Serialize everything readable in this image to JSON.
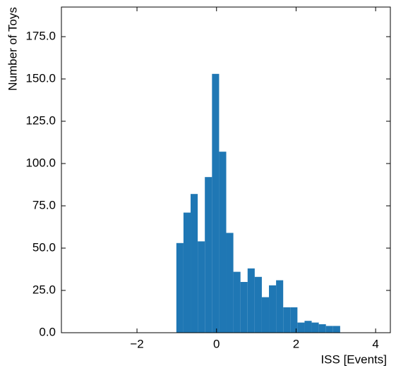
{
  "chart_data": {
    "type": "histogram",
    "xlabel": "ISS [Events]",
    "ylabel": "Number of Toys",
    "bins": [
      -1.01,
      -0.831,
      -0.652,
      -0.473,
      -0.294,
      -0.114,
      0.065,
      0.244,
      0.423,
      0.602,
      0.781,
      0.96,
      1.139,
      1.318,
      1.497,
      1.676,
      1.855,
      2.034,
      2.213,
      2.392,
      2.571,
      2.75,
      2.929,
      3.108
    ],
    "values": [
      53,
      71,
      82,
      54,
      92,
      153,
      107,
      59,
      36,
      30,
      38,
      33,
      21,
      28,
      31,
      15,
      15,
      6,
      7,
      6,
      5,
      4,
      4
    ],
    "color": "#1f77b4",
    "xlim": [
      -3.9,
      4.37
    ],
    "ylim": [
      0,
      192.5
    ],
    "xticks": [
      {
        "value": -2,
        "label": "−2"
      },
      0,
      2,
      4
    ],
    "yticks": [
      {
        "value": 0,
        "label": "0.0"
      },
      {
        "value": 25,
        "label": "25.0"
      },
      {
        "value": 50,
        "label": "50.0"
      },
      {
        "value": 75,
        "label": "75.0"
      },
      {
        "value": 100,
        "label": "100.0"
      },
      {
        "value": 125,
        "label": "125.0"
      },
      {
        "value": 150,
        "label": "150.0"
      },
      {
        "value": 175,
        "label": "175.0"
      }
    ]
  }
}
